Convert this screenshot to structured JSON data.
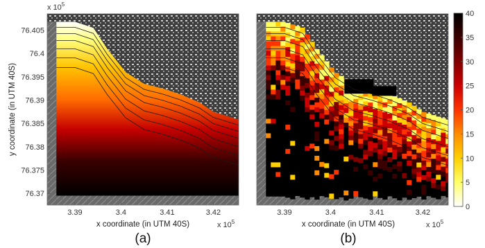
{
  "chart_data": [
    {
      "type": "heatmap",
      "panel_label": "(a)",
      "xlabel": "x coordinate (in UTM 40S)",
      "ylabel": "y coordinate (in UTM 40S)",
      "x_exponent": "x 10",
      "y_exponent": "x 10",
      "exponent_power": "5",
      "xticks": [
        3.39,
        3.4,
        3.41,
        3.42
      ],
      "xtick_labels": [
        "3.39",
        "3.4",
        "3.41",
        "3.42"
      ],
      "yticks": [
        76.405,
        76.4,
        76.395,
        76.39,
        76.385,
        76.38,
        76.375,
        76.37
      ],
      "ytick_labels": [
        "76.405",
        "76.4",
        "76.395",
        "76.39",
        "76.385",
        "76.38",
        "76.375",
        "76.37"
      ],
      "xlim": [
        3.384,
        3.4255
      ],
      "ylim": [
        76.3675,
        76.4085
      ],
      "data_extent": {
        "x": [
          3.386,
          3.4255
        ],
        "y": [
          76.3695,
          76.407
        ]
      },
      "background": "grayscale satellite image",
      "contours": true,
      "colormap": "hot (reversed)"
    },
    {
      "type": "heatmap",
      "panel_label": "(b)",
      "xlabel": "x coordinate (in UTM 40S)",
      "x_exponent": "x 10",
      "exponent_power": "5",
      "xticks": [
        3.39,
        3.4,
        3.41,
        3.42
      ],
      "xtick_labels": [
        "3.39",
        "3.4",
        "3.41",
        "3.42"
      ],
      "xlim": [
        3.384,
        3.4255
      ],
      "ylim": [
        76.3675,
        76.4085
      ],
      "data_extent": {
        "x": [
          3.386,
          3.4255
        ],
        "y": [
          76.3695,
          76.407
        ]
      },
      "background": "grayscale satellite image",
      "contours": true,
      "pixelated": true,
      "colormap": "hot (reversed)"
    }
  ],
  "colorbar": {
    "ticks": [
      0,
      5,
      10,
      15,
      20,
      25,
      30,
      35,
      40
    ],
    "tick_labels": [
      "0",
      "5",
      "10",
      "15",
      "20",
      "25",
      "30",
      "35",
      "40"
    ],
    "range": [
      0,
      40
    ],
    "colors": [
      "#ffffff",
      "#ffff66",
      "#ffd000",
      "#ff8c00",
      "#ff3300",
      "#cc0000",
      "#800000",
      "#3a0000",
      "#000000"
    ]
  },
  "coastline_x": [
    3.386,
    3.39,
    3.394,
    3.397,
    3.401,
    3.405,
    3.409,
    3.413,
    3.417,
    3.42,
    3.4255
  ],
  "coastline_y": [
    76.4068,
    76.4068,
    76.4055,
    76.401,
    76.396,
    76.3935,
    76.3925,
    76.3912,
    76.3895,
    76.3875,
    76.3858
  ]
}
